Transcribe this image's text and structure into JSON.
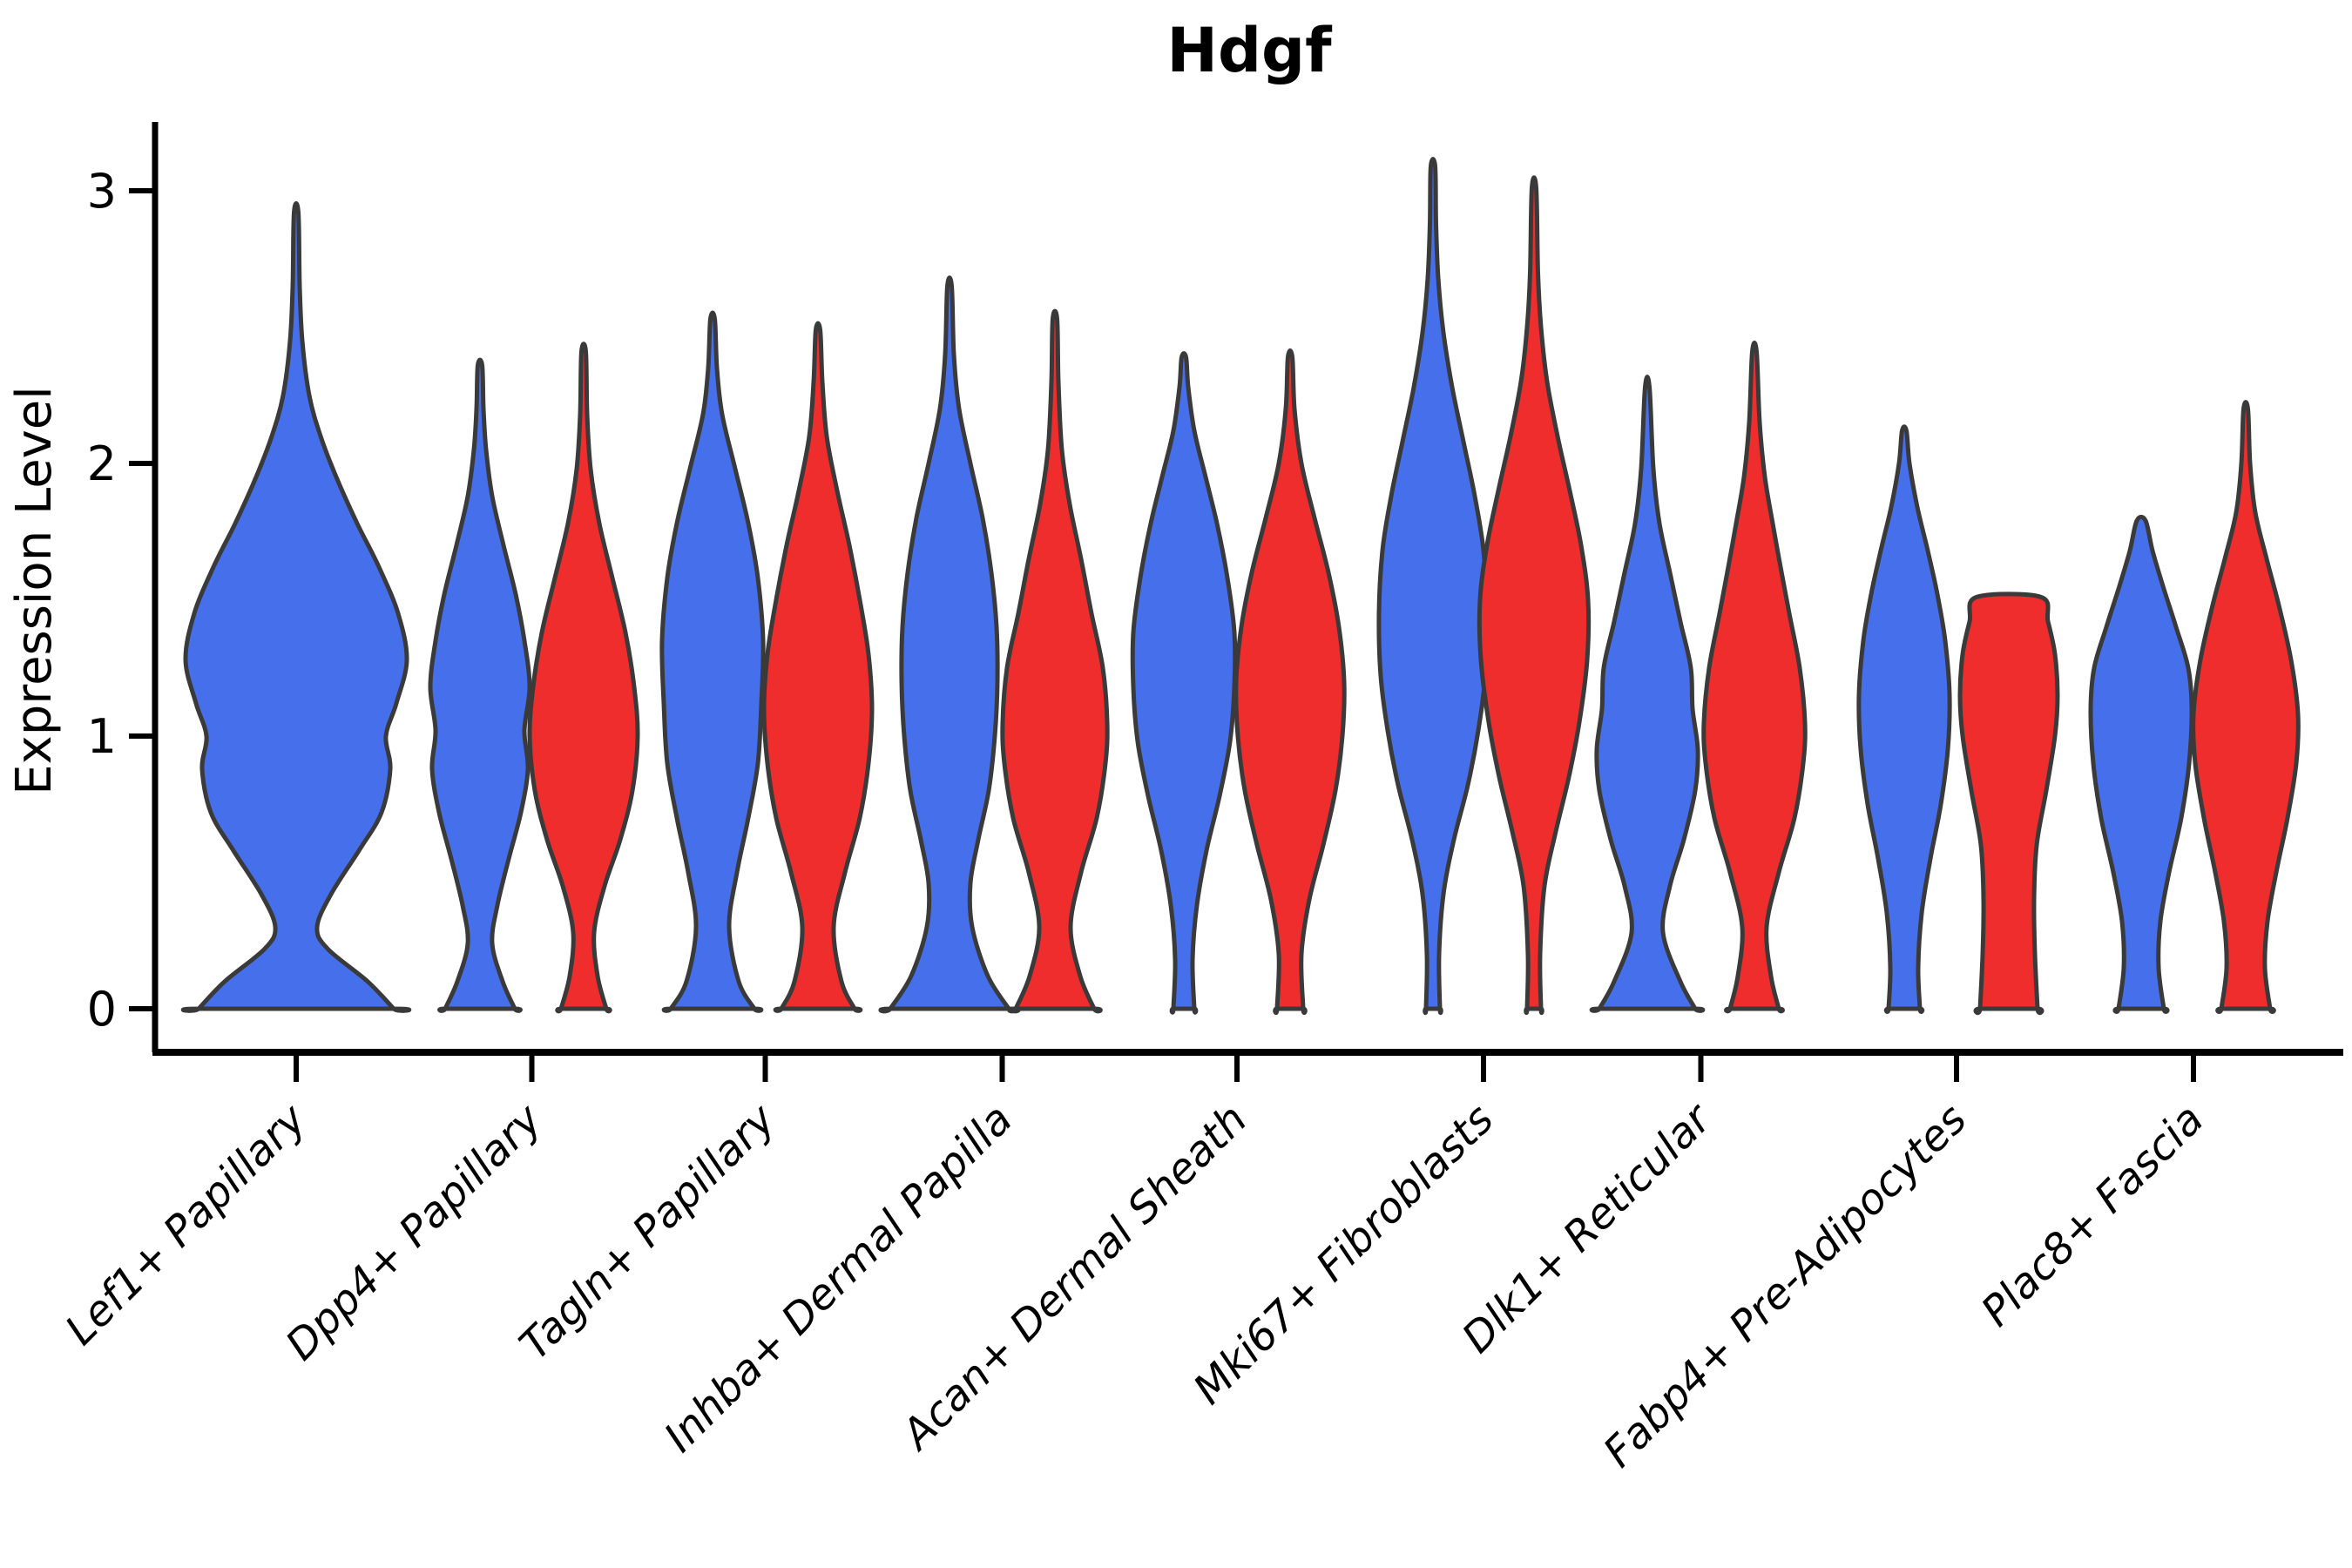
{
  "title": "Hdgf",
  "y_axis": {
    "label": "Expression Level",
    "tick_labels": [
      "0",
      "1",
      "2",
      "3"
    ],
    "tick_values": [
      0,
      1,
      2,
      3
    ]
  },
  "x_axis": {
    "categories": [
      "Lef1+ Papillary",
      "Dpp4+ Papillary",
      "Tagln+ Papillary",
      "Inhba+ Dermal Papilla",
      "Acan+ Dermal Sheath",
      "Mki67+ Fibroblasts",
      "Dlk1+ Reticular",
      "Fabp4+ Pre-Adipocytes",
      "Plac8+ Fascia"
    ]
  },
  "colors": {
    "blue_fill": "#4670EB",
    "red_fill": "#EF2D2D",
    "violin_outline": "#3A3A3A",
    "axis": "#000000",
    "background": "#FFFFFF"
  },
  "chart_data": {
    "type": "violin",
    "title": "Hdgf",
    "xlabel": "",
    "ylabel": "Expression Level",
    "ylim": [
      -0.16,
      3.4
    ],
    "yticks": [
      0,
      1,
      2,
      3
    ],
    "grid": false,
    "legend_position": "none",
    "categories": [
      "Lef1+ Papillary",
      "Dpp4+ Papillary",
      "Tagln+ Papillary",
      "Inhba+ Dermal Papilla",
      "Acan+ Dermal Sheath",
      "Mki67+ Fibroblasts",
      "Dlk1+ Reticular",
      "Fabp4+ Pre-Adipocytes",
      "Plac8+ Fascia"
    ],
    "violins": [
      {
        "category": "Lef1+ Papillary",
        "group": "blue",
        "cx": 340,
        "max_value": 2.92,
        "min_value": 0,
        "clipped_top": false,
        "profile": [
          [
            0,
            112
          ],
          [
            0.1,
            82
          ],
          [
            0.22,
            36
          ],
          [
            0.3,
            24
          ],
          [
            0.42,
            40
          ],
          [
            0.58,
            72
          ],
          [
            0.72,
            98
          ],
          [
            0.88,
            108
          ],
          [
            1.0,
            103
          ],
          [
            1.12,
            115
          ],
          [
            1.28,
            127
          ],
          [
            1.45,
            117
          ],
          [
            1.62,
            95
          ],
          [
            1.78,
            70
          ],
          [
            1.95,
            46
          ],
          [
            2.1,
            28
          ],
          [
            2.25,
            15
          ],
          [
            2.45,
            7
          ],
          [
            2.65,
            4
          ],
          [
            2.92,
            2.5
          ]
        ]
      },
      {
        "category": "Dpp4+ Papillary",
        "group": "blue",
        "cx": 551,
        "max_value": 2.36,
        "min_value": 0,
        "clipped_top": false,
        "profile": [
          [
            0,
            40
          ],
          [
            0.1,
            26
          ],
          [
            0.24,
            14
          ],
          [
            0.38,
            20
          ],
          [
            0.55,
            33
          ],
          [
            0.72,
            47
          ],
          [
            0.88,
            55
          ],
          [
            1.02,
            51
          ],
          [
            1.18,
            57
          ],
          [
            1.35,
            51
          ],
          [
            1.52,
            41
          ],
          [
            1.7,
            27
          ],
          [
            1.88,
            14
          ],
          [
            2.05,
            7
          ],
          [
            2.2,
            4
          ],
          [
            2.36,
            2.5
          ]
        ]
      },
      {
        "category": "Dpp4+ Papillary",
        "group": "red",
        "cx": 670,
        "max_value": 2.41,
        "min_value": 0,
        "clipped_top": false,
        "profile": [
          [
            0,
            26
          ],
          [
            0.12,
            16
          ],
          [
            0.28,
            12
          ],
          [
            0.45,
            24
          ],
          [
            0.62,
            42
          ],
          [
            0.8,
            56
          ],
          [
            1.0,
            62
          ],
          [
            1.18,
            58
          ],
          [
            1.38,
            48
          ],
          [
            1.58,
            33
          ],
          [
            1.78,
            18
          ],
          [
            1.98,
            8
          ],
          [
            2.18,
            4
          ],
          [
            2.41,
            2.5
          ]
        ]
      },
      {
        "category": "Tagln+ Papillary",
        "group": "blue",
        "cx": 818,
        "max_value": 2.53,
        "min_value": 0,
        "clipped_top": false,
        "profile": [
          [
            0,
            48
          ],
          [
            0.1,
            30
          ],
          [
            0.3,
            19
          ],
          [
            0.5,
            28
          ],
          [
            0.7,
            41
          ],
          [
            0.9,
            52
          ],
          [
            1.12,
            56
          ],
          [
            1.35,
            58
          ],
          [
            1.58,
            52
          ],
          [
            1.78,
            41
          ],
          [
            1.98,
            26
          ],
          [
            2.18,
            11
          ],
          [
            2.35,
            5
          ],
          [
            2.53,
            2.5
          ]
        ]
      },
      {
        "category": "Tagln+ Papillary",
        "group": "red",
        "cx": 939,
        "max_value": 2.49,
        "min_value": 0,
        "clipped_top": false,
        "profile": [
          [
            0,
            42
          ],
          [
            0.1,
            27
          ],
          [
            0.3,
            18
          ],
          [
            0.5,
            31
          ],
          [
            0.7,
            48
          ],
          [
            0.9,
            58
          ],
          [
            1.1,
            62
          ],
          [
            1.3,
            58
          ],
          [
            1.5,
            48
          ],
          [
            1.7,
            36
          ],
          [
            1.9,
            22
          ],
          [
            2.1,
            10
          ],
          [
            2.3,
            5
          ],
          [
            2.49,
            2.5
          ]
        ]
      },
      {
        "category": "Inhba+ Dermal Papilla",
        "group": "blue",
        "cx": 1090,
        "max_value": 2.65,
        "min_value": 0,
        "clipped_top": false,
        "profile": [
          [
            0,
            68
          ],
          [
            0.12,
            44
          ],
          [
            0.3,
            26
          ],
          [
            0.46,
            24
          ],
          [
            0.62,
            33
          ],
          [
            0.8,
            45
          ],
          [
            1.0,
            52
          ],
          [
            1.2,
            55
          ],
          [
            1.4,
            54
          ],
          [
            1.6,
            48
          ],
          [
            1.8,
            38
          ],
          [
            2.0,
            24
          ],
          [
            2.2,
            11
          ],
          [
            2.4,
            5
          ],
          [
            2.65,
            2.5
          ]
        ]
      },
      {
        "category": "Inhba+ Dermal Papilla",
        "group": "red",
        "cx": 1211,
        "max_value": 2.53,
        "min_value": 0,
        "clipped_top": false,
        "profile": [
          [
            0,
            45
          ],
          [
            0.12,
            29
          ],
          [
            0.3,
            18
          ],
          [
            0.5,
            30
          ],
          [
            0.7,
            48
          ],
          [
            0.9,
            58
          ],
          [
            1.05,
            60
          ],
          [
            1.25,
            55
          ],
          [
            1.45,
            42
          ],
          [
            1.65,
            30
          ],
          [
            1.85,
            17
          ],
          [
            2.05,
            8
          ],
          [
            2.3,
            4
          ],
          [
            2.53,
            2.5
          ]
        ]
      },
      {
        "category": "Acan+ Dermal Sheath",
        "group": "blue",
        "cx": 1359,
        "max_value": 2.39,
        "min_value": 0,
        "clipped_top": false,
        "profile": [
          [
            0,
            12
          ],
          [
            0.18,
            10
          ],
          [
            0.38,
            15
          ],
          [
            0.58,
            26
          ],
          [
            0.78,
            41
          ],
          [
            0.98,
            53
          ],
          [
            1.18,
            58
          ],
          [
            1.38,
            58
          ],
          [
            1.58,
            50
          ],
          [
            1.78,
            38
          ],
          [
            1.95,
            25
          ],
          [
            2.12,
            12
          ],
          [
            2.28,
            5
          ],
          [
            2.39,
            2.5
          ]
        ]
      },
      {
        "category": "Acan+ Dermal Sheath",
        "group": "red",
        "cx": 1481,
        "max_value": 2.39,
        "min_value": 0,
        "clipped_top": false,
        "profile": [
          [
            0,
            15
          ],
          [
            0.2,
            13
          ],
          [
            0.4,
            22
          ],
          [
            0.6,
            38
          ],
          [
            0.8,
            52
          ],
          [
            1.0,
            60
          ],
          [
            1.2,
            62
          ],
          [
            1.4,
            56
          ],
          [
            1.6,
            44
          ],
          [
            1.8,
            28
          ],
          [
            2.0,
            13
          ],
          [
            2.2,
            5
          ],
          [
            2.39,
            2.5
          ]
        ]
      },
      {
        "category": "Mki67+ Fibroblasts",
        "group": "blue",
        "cx": 1645,
        "max_value": 3.09,
        "min_value": 0,
        "clipped_top": false,
        "profile": [
          [
            0,
            8
          ],
          [
            0.2,
            7
          ],
          [
            0.42,
            12
          ],
          [
            0.62,
            24
          ],
          [
            0.82,
            40
          ],
          [
            1.02,
            52
          ],
          [
            1.22,
            60
          ],
          [
            1.45,
            62
          ],
          [
            1.68,
            58
          ],
          [
            1.88,
            48
          ],
          [
            2.08,
            35
          ],
          [
            2.28,
            22
          ],
          [
            2.48,
            12
          ],
          [
            2.68,
            6
          ],
          [
            2.88,
            3.5
          ],
          [
            3.09,
            2.5
          ]
        ]
      },
      {
        "category": "Mki67+ Fibroblasts",
        "group": "red",
        "cx": 1761,
        "max_value": 3.01,
        "min_value": 0,
        "clipped_top": false,
        "profile": [
          [
            0,
            8
          ],
          [
            0.2,
            7
          ],
          [
            0.45,
            12
          ],
          [
            0.65,
            25
          ],
          [
            0.85,
            40
          ],
          [
            1.05,
            52
          ],
          [
            1.28,
            61
          ],
          [
            1.5,
            62
          ],
          [
            1.7,
            54
          ],
          [
            1.9,
            41
          ],
          [
            2.1,
            27
          ],
          [
            2.3,
            15
          ],
          [
            2.5,
            8
          ],
          [
            2.7,
            4.5
          ],
          [
            3.01,
            2.5
          ]
        ]
      },
      {
        "category": "Dlk1+ Reticular",
        "group": "blue",
        "cx": 1891,
        "max_value": 2.28,
        "min_value": 0,
        "clipped_top": false,
        "profile": [
          [
            0,
            55
          ],
          [
            0.1,
            38
          ],
          [
            0.28,
            18
          ],
          [
            0.45,
            26
          ],
          [
            0.62,
            42
          ],
          [
            0.8,
            55
          ],
          [
            0.95,
            58
          ],
          [
            1.1,
            52
          ],
          [
            1.25,
            50
          ],
          [
            1.42,
            38
          ],
          [
            1.6,
            26
          ],
          [
            1.78,
            14
          ],
          [
            1.98,
            7
          ],
          [
            2.28,
            2.5
          ]
        ]
      },
      {
        "category": "Dlk1+ Reticular",
        "group": "red",
        "cx": 2014,
        "max_value": 2.41,
        "min_value": 0,
        "clipped_top": false,
        "profile": [
          [
            0,
            28
          ],
          [
            0.12,
            19
          ],
          [
            0.3,
            14
          ],
          [
            0.5,
            28
          ],
          [
            0.7,
            46
          ],
          [
            0.9,
            56
          ],
          [
            1.05,
            58
          ],
          [
            1.25,
            52
          ],
          [
            1.45,
            40
          ],
          [
            1.62,
            30
          ],
          [
            1.78,
            21
          ],
          [
            1.95,
            12
          ],
          [
            2.15,
            6
          ],
          [
            2.41,
            2.5
          ]
        ]
      },
      {
        "category": "Fabp4+ Pre-Adipocytes",
        "group": "blue",
        "cx": 2186,
        "max_value": 2.12,
        "min_value": 0,
        "clipped_top": false,
        "profile": [
          [
            0,
            18
          ],
          [
            0.15,
            16
          ],
          [
            0.35,
            20
          ],
          [
            0.55,
            30
          ],
          [
            0.75,
            42
          ],
          [
            0.95,
            50
          ],
          [
            1.15,
            52
          ],
          [
            1.35,
            47
          ],
          [
            1.52,
            38
          ],
          [
            1.68,
            27
          ],
          [
            1.84,
            15
          ],
          [
            2.0,
            6
          ],
          [
            2.12,
            2.5
          ]
        ]
      },
      {
        "category": "Fabp4+ Pre-Adipocytes",
        "group": "red",
        "cx": 2306,
        "max_value": 1.51,
        "min_value": 0,
        "clipped_top": true,
        "profile": [
          [
            0,
            33
          ],
          [
            0.2,
            30
          ],
          [
            0.4,
            29
          ],
          [
            0.6,
            32
          ],
          [
            0.8,
            43
          ],
          [
            1.0,
            53
          ],
          [
            1.15,
            56
          ],
          [
            1.3,
            53
          ],
          [
            1.42,
            45
          ],
          [
            1.51,
            37
          ]
        ]
      },
      {
        "category": "Plac8+ Fascia",
        "group": "blue",
        "cx": 2458,
        "max_value": 1.79,
        "min_value": 0,
        "clipped_top": false,
        "profile": [
          [
            0,
            26
          ],
          [
            0.15,
            20
          ],
          [
            0.32,
            22
          ],
          [
            0.5,
            32
          ],
          [
            0.7,
            46
          ],
          [
            0.9,
            55
          ],
          [
            1.1,
            58
          ],
          [
            1.25,
            54
          ],
          [
            1.4,
            40
          ],
          [
            1.55,
            25
          ],
          [
            1.68,
            13
          ],
          [
            1.79,
            5
          ]
        ]
      },
      {
        "category": "Plac8+ Fascia",
        "group": "red",
        "cx": 2578,
        "max_value": 2.2,
        "min_value": 0,
        "clipped_top": false,
        "profile": [
          [
            0,
            28
          ],
          [
            0.15,
            22
          ],
          [
            0.32,
            25
          ],
          [
            0.5,
            35
          ],
          [
            0.7,
            48
          ],
          [
            0.9,
            58
          ],
          [
            1.08,
            60
          ],
          [
            1.28,
            52
          ],
          [
            1.48,
            38
          ],
          [
            1.65,
            24
          ],
          [
            1.82,
            11
          ],
          [
            2.0,
            5
          ],
          [
            2.2,
            2.5
          ]
        ]
      }
    ]
  }
}
